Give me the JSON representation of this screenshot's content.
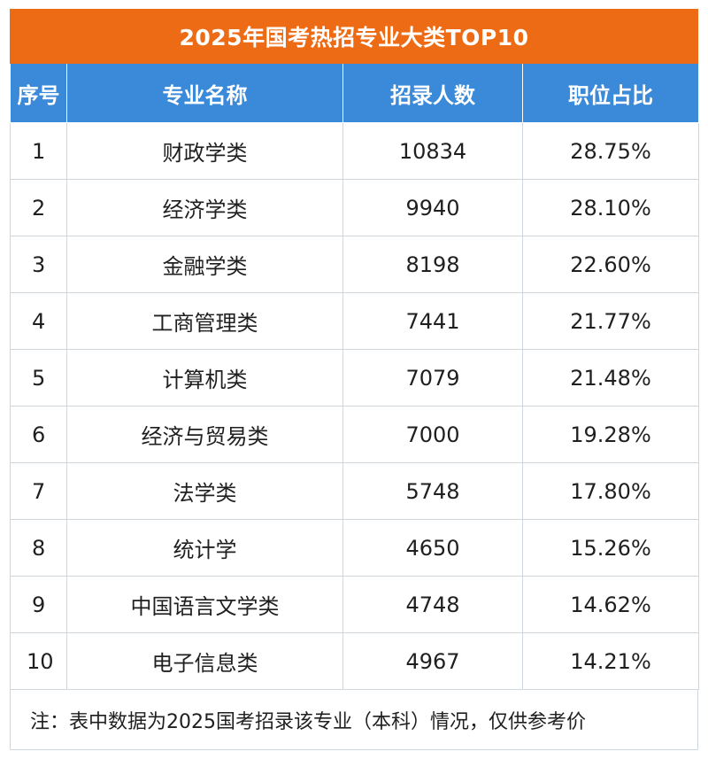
{
  "title": "2025年国考热招专业大类TOP10",
  "headers": [
    "序号",
    "专业名称",
    "招录人数",
    "职位占比"
  ],
  "rows": [
    {
      "index": "1",
      "major": "财政学类",
      "recruits": "10834",
      "share": "28.75%"
    },
    {
      "index": "2",
      "major": "经济学类",
      "recruits": "9940",
      "share": "28.10%"
    },
    {
      "index": "3",
      "major": "金融学类",
      "recruits": "8198",
      "share": "22.60%"
    },
    {
      "index": "4",
      "major": "工商管理类",
      "recruits": "7441",
      "share": "21.77%"
    },
    {
      "index": "5",
      "major": "计算机类",
      "recruits": "7079",
      "share": "21.48%"
    },
    {
      "index": "6",
      "major": "经济与贸易类",
      "recruits": "7000",
      "share": "19.28%"
    },
    {
      "index": "7",
      "major": "法学类",
      "recruits": "5748",
      "share": "17.80%"
    },
    {
      "index": "8",
      "major": "统计学",
      "recruits": "4650",
      "share": "15.26%"
    },
    {
      "index": "9",
      "major": "中国语言文学类",
      "recruits": "4748",
      "share": "14.62%"
    },
    {
      "index": "10",
      "major": "电子信息类",
      "recruits": "4967",
      "share": "14.21%"
    }
  ],
  "footnote": "注：表中数据为2025国考招录该专业（本科）情况，仅供参考价",
  "colors": {
    "title_bg": "#ec6b14",
    "header_bg": "#3b8ad9",
    "grid": "#cfd6de"
  }
}
